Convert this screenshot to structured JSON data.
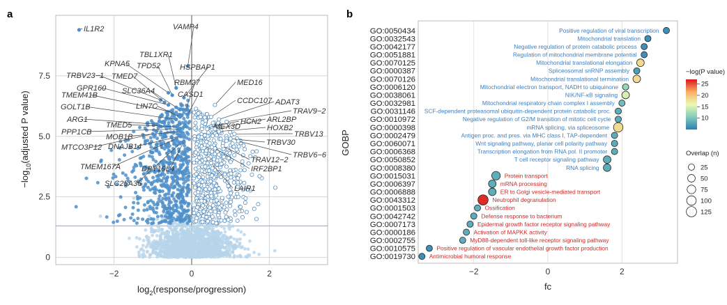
{
  "panel_a": {
    "letter": "a",
    "chart_data": {
      "type": "scatter",
      "title": "",
      "xlabel_main": "log",
      "xlabel_sub": "2",
      "xlabel_rest": "(response/progression)",
      "ylabel_pre": "−log",
      "ylabel_sub": "10",
      "ylabel_rest": "(adjusted P value)",
      "xlim": [
        -3.5,
        3.5
      ],
      "ylim": [
        -0.3,
        10.0
      ],
      "x_ticks": [
        -2,
        0,
        2
      ],
      "x_tick_labels": [
        "−2",
        "0",
        "2"
      ],
      "y_ticks": [
        0,
        2.5,
        5.0,
        7.5
      ],
      "y_tick_labels": [
        "0",
        "2.5",
        "5.0",
        "7.5"
      ],
      "grid": true,
      "significance_threshold_y": 1.3,
      "point_colors": {
        "down_significant": "#4f8fc9",
        "up_significant_fill": "#ffffff",
        "up_significant_edge": "#5a8fc0",
        "not_significant": "#b7d4ea"
      },
      "labeled_points": [
        {
          "gene": "IL1R2",
          "x": -2.9,
          "y": 9.4
        },
        {
          "gene": "VAMP4",
          "x": -0.1,
          "y": 7.9
        },
        {
          "gene": "TBL1XR1",
          "x": -0.4,
          "y": 7.0
        },
        {
          "gene": "KPNA5",
          "x": -0.6,
          "y": 6.8
        },
        {
          "gene": "TPD52",
          "x": -0.5,
          "y": 6.7
        },
        {
          "gene": "HSPBAP1",
          "x": -0.2,
          "y": 6.6
        },
        {
          "gene": "TRBV23−1",
          "x": -0.8,
          "y": 6.5
        },
        {
          "gene": "TMED7",
          "x": -0.7,
          "y": 6.4
        },
        {
          "gene": "GPR160",
          "x": -0.6,
          "y": 6.3
        },
        {
          "gene": "SLC36A4",
          "x": -0.4,
          "y": 6.2
        },
        {
          "gene": "RBM27",
          "x": -0.15,
          "y": 6.1
        },
        {
          "gene": "CASD1",
          "x": -0.1,
          "y": 5.9
        },
        {
          "gene": "TMEM41B",
          "x": -0.5,
          "y": 6.0
        },
        {
          "gene": "LIN7C",
          "x": -0.3,
          "y": 5.8
        },
        {
          "gene": "GOLT1B",
          "x": -0.4,
          "y": 5.7
        },
        {
          "gene": "ARG1",
          "x": -0.9,
          "y": 5.5
        },
        {
          "gene": "TMED5",
          "x": -0.4,
          "y": 5.4
        },
        {
          "gene": "PPP1CB",
          "x": -0.3,
          "y": 5.3
        },
        {
          "gene": "MOB1B",
          "x": -0.3,
          "y": 5.2
        },
        {
          "gene": "MTCO3P12",
          "x": -1.0,
          "y": 5.1
        },
        {
          "gene": "DNAJB14",
          "x": -0.3,
          "y": 5.0
        },
        {
          "gene": "TMEM167A",
          "x": -0.4,
          "y": 4.9
        },
        {
          "gene": "DPY19L4",
          "x": -0.2,
          "y": 4.8
        },
        {
          "gene": "SLC25A36",
          "x": -0.3,
          "y": 4.7
        },
        {
          "gene": "MED16",
          "x": 0.6,
          "y": 6.3
        },
        {
          "gene": "CCDC107",
          "x": 0.5,
          "y": 5.8
        },
        {
          "gene": "ADAT3",
          "x": 0.7,
          "y": 5.7
        },
        {
          "gene": "TRAV9−2",
          "x": 0.9,
          "y": 5.6
        },
        {
          "gene": "HCN2",
          "x": 0.5,
          "y": 5.4
        },
        {
          "gene": "MEX3D",
          "x": 0.4,
          "y": 5.3
        },
        {
          "gene": "ARL2BP",
          "x": 0.6,
          "y": 5.3
        },
        {
          "gene": "HOXB2",
          "x": 0.7,
          "y": 5.2
        },
        {
          "gene": "TRBV13",
          "x": 1.1,
          "y": 5.1
        },
        {
          "gene": "TRBV30",
          "x": 1.0,
          "y": 4.9
        },
        {
          "gene": "TRBV6−6",
          "x": 1.2,
          "y": 4.8
        },
        {
          "gene": "TRAV12−2",
          "x": 0.8,
          "y": 4.6
        },
        {
          "gene": "IRF2BP1",
          "x": 0.6,
          "y": 4.5
        },
        {
          "gene": "LAIR1",
          "x": 0.5,
          "y": 3.9
        }
      ]
    }
  },
  "panel_b": {
    "letter": "b",
    "chart_data": {
      "type": "scatter",
      "title": "",
      "xlabel": "fc",
      "ylabel": "GOBP",
      "xlim": [
        -3.5,
        3.5
      ],
      "x_ticks": [
        -2,
        0,
        2
      ],
      "x_tick_labels": [
        "−2",
        "0",
        "2"
      ],
      "grid": true,
      "legend_color_title": "−log(P value)",
      "legend_color_ticks": [
        10,
        15,
        20,
        25
      ],
      "legend_size_title": "Overlap (n)",
      "legend_size_values": [
        25,
        50,
        75,
        100,
        125
      ],
      "legend_placement": "right",
      "up_label_color": "#3f7fc0",
      "down_label_color": "#cc2a2a",
      "terms": [
        {
          "go": "GO:0050434",
          "desc": "Positive regulation of viral transcription",
          "fc": 3.2,
          "neglogp": 6,
          "overlap": 25,
          "dir": "up"
        },
        {
          "go": "GO:0032543",
          "desc": "Mitochondrial translation",
          "fc": 2.7,
          "neglogp": 6,
          "overlap": 25,
          "dir": "up"
        },
        {
          "go": "GO:0042177",
          "desc": "Negative regulation of protein catabolic process",
          "fc": 2.6,
          "neglogp": 6,
          "overlap": 25,
          "dir": "up"
        },
        {
          "go": "GO:0051881",
          "desc": "Regulation of mitochondrial membrane potential",
          "fc": 2.6,
          "neglogp": 6,
          "overlap": 25,
          "dir": "up"
        },
        {
          "go": "GO:0070125",
          "desc": "Mitochondrial translational elongation",
          "fc": 2.5,
          "neglogp": 17,
          "overlap": 50,
          "dir": "up"
        },
        {
          "go": "GO:0000387",
          "desc": "Spliceosomal snRNP assembly",
          "fc": 2.4,
          "neglogp": 7,
          "overlap": 25,
          "dir": "up"
        },
        {
          "go": "GO:0070126",
          "desc": "Mitochondrial translational termination",
          "fc": 2.4,
          "neglogp": 17,
          "overlap": 50,
          "dir": "up"
        },
        {
          "go": "GO:0006120",
          "desc": "Mitochondrial electron transport, NADH to ubiquinone",
          "fc": 2.1,
          "neglogp": 11,
          "overlap": 25,
          "dir": "up"
        },
        {
          "go": "GO:0038061",
          "desc": "NIK/NF-κB signaling",
          "fc": 2.1,
          "neglogp": 14,
          "overlap": 50,
          "dir": "up"
        },
        {
          "go": "GO:0032981",
          "desc": "Mitochondrial respiratory chain complex I assembly",
          "fc": 2.0,
          "neglogp": 9,
          "overlap": 25,
          "dir": "up"
        },
        {
          "go": "GO:0031146",
          "desc": "SCF-dependent proteasomal ubiquitin-dependent protein catabolic proc.",
          "fc": 1.9,
          "neglogp": 8,
          "overlap": 25,
          "dir": "up"
        },
        {
          "go": "GO:0010972",
          "desc": "Negative regulation of G2/M transition of mitotic cell cycle",
          "fc": 1.9,
          "neglogp": 8,
          "overlap": 25,
          "dir": "up"
        },
        {
          "go": "GO:0000398",
          "desc": "mRNA splicing, via spliceosome",
          "fc": 1.9,
          "neglogp": 17,
          "overlap": 100,
          "dir": "up"
        },
        {
          "go": "GO:0002479",
          "desc": "Antigen proc. and pres. via MHC class I, TAP-dependent",
          "fc": 1.8,
          "neglogp": 8,
          "overlap": 25,
          "dir": "up"
        },
        {
          "go": "GO:0060071",
          "desc": "Wnt signaling pathway, planar cell polarity pathway",
          "fc": 1.8,
          "neglogp": 8,
          "overlap": 25,
          "dir": "up"
        },
        {
          "go": "GO:0006368",
          "desc": "Transcription elongation from RNA pol. II promoter",
          "fc": 1.8,
          "neglogp": 8,
          "overlap": 25,
          "dir": "up"
        },
        {
          "go": "GO:0050852",
          "desc": "T cell receptor signaling pathway",
          "fc": 1.6,
          "neglogp": 8,
          "overlap": 50,
          "dir": "up"
        },
        {
          "go": "GO:0008380",
          "desc": "RNA splicing",
          "fc": 1.6,
          "neglogp": 8,
          "overlap": 50,
          "dir": "up"
        },
        {
          "go": "GO:0015031",
          "desc": "Protein transport",
          "fc": -1.4,
          "neglogp": 8,
          "overlap": 75,
          "dir": "down"
        },
        {
          "go": "GO:0006397",
          "desc": "mRNA processing",
          "fc": -1.5,
          "neglogp": 8,
          "overlap": 50,
          "dir": "down"
        },
        {
          "go": "GO:0006888",
          "desc": "ER to Golgi vesicle-mediated transport",
          "fc": -1.5,
          "neglogp": 8,
          "overlap": 50,
          "dir": "down"
        },
        {
          "go": "GO:0043312",
          "desc": "Neutrophil degranulation",
          "fc": -1.75,
          "neglogp": 26,
          "overlap": 125,
          "dir": "down"
        },
        {
          "go": "GO:0001503",
          "desc": "Ossification",
          "fc": -1.9,
          "neglogp": 8,
          "overlap": 25,
          "dir": "down"
        },
        {
          "go": "GO:0042742",
          "desc": "Defense response to bacterium",
          "fc": -2.0,
          "neglogp": 8,
          "overlap": 25,
          "dir": "down"
        },
        {
          "go": "GO:0007173",
          "desc": "Epidermal growth factor receptor signaling pathway",
          "fc": -2.1,
          "neglogp": 8,
          "overlap": 25,
          "dir": "down"
        },
        {
          "go": "GO:0000186",
          "desc": "Activation of MAPKK activity",
          "fc": -2.2,
          "neglogp": 8,
          "overlap": 25,
          "dir": "down"
        },
        {
          "go": "GO:0002755",
          "desc": "MyD88-dependent toll-like receptor signaling pathway",
          "fc": -2.3,
          "neglogp": 8,
          "overlap": 25,
          "dir": "down"
        },
        {
          "go": "GO:0010575",
          "desc": "Positive regulation of vascular endothelial growth factor production",
          "fc": -3.2,
          "neglogp": 6,
          "overlap": 25,
          "dir": "down"
        },
        {
          "go": "GO:0019730",
          "desc": "Antimicrobial humoral response",
          "fc": -3.4,
          "neglogp": 6,
          "overlap": 25,
          "dir": "down"
        }
      ]
    }
  }
}
